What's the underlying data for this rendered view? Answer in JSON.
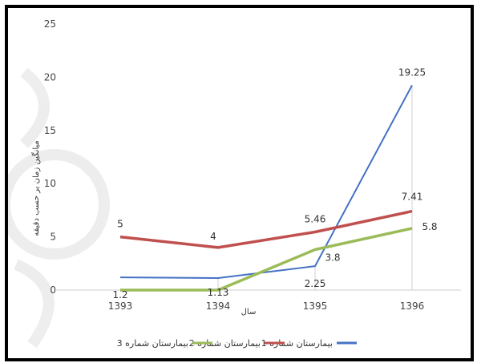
{
  "chart_data": {
    "type": "line",
    "categories": [
      "1393",
      "1394",
      "1395",
      "1396"
    ],
    "x_axis_label": "سال",
    "y_axis_label": "میانگین زمان بر حسب دقیقه",
    "ylim": [
      0,
      25
    ],
    "y_ticks": [
      0,
      5,
      10,
      15,
      20,
      25
    ],
    "grid": false,
    "legend_position": "bottom",
    "series": [
      {
        "name": "بیمارستان شماره 1",
        "color": "#4472c4",
        "values": [
          1.2,
          1.13,
          2.25,
          19.25
        ],
        "labels": [
          "1.2",
          "1.13",
          "2.25",
          "19.25"
        ]
      },
      {
        "name": "بیمارستان شماره 2",
        "color": "#c0504d",
        "values": [
          5,
          4,
          5.46,
          7.41
        ],
        "labels": [
          "5",
          "4",
          "5.46",
          "7.41"
        ]
      },
      {
        "name": "بیمارستان شماره 3",
        "color": "#9bbb59",
        "values": [
          0,
          0,
          3.8,
          5.8
        ],
        "labels": [
          "",
          "",
          "3.8",
          "5.8"
        ]
      }
    ]
  }
}
